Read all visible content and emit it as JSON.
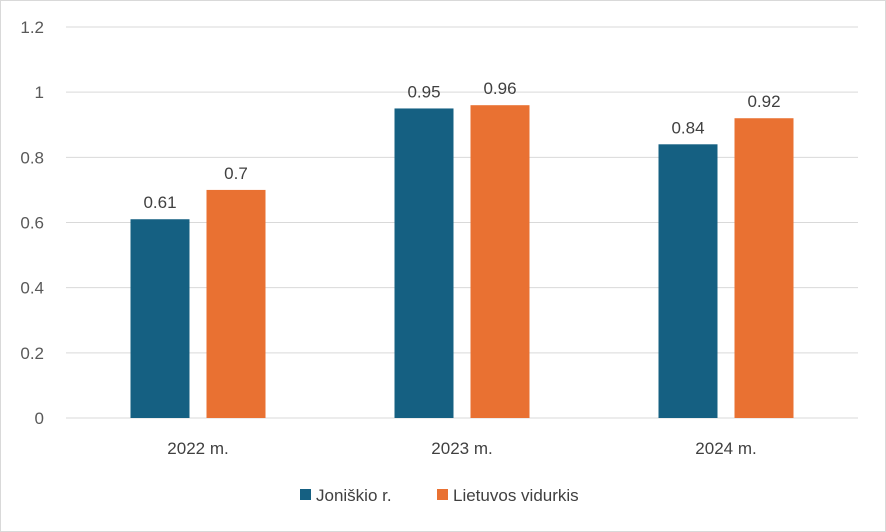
{
  "chart_data": {
    "type": "bar",
    "categories": [
      "2022 m.",
      "2023 m.",
      "2024 m."
    ],
    "series": [
      {
        "name": "Joniškio r.",
        "values": [
          0.61,
          0.95,
          0.84
        ],
        "labels": [
          "0.61",
          "0.95",
          "0.84"
        ],
        "color": "#156082"
      },
      {
        "name": "Lietuvos vidurkis",
        "values": [
          0.7,
          0.96,
          0.92
        ],
        "labels": [
          "0.7",
          "0.96",
          "0.92"
        ],
        "color": "#E97132"
      }
    ],
    "y_ticks": [
      "0",
      "0.2",
      "0.4",
      "0.6",
      "0.8",
      "1",
      "1.2"
    ],
    "ylim": [
      0,
      1.2
    ],
    "grid": true,
    "legend": "bottom"
  }
}
